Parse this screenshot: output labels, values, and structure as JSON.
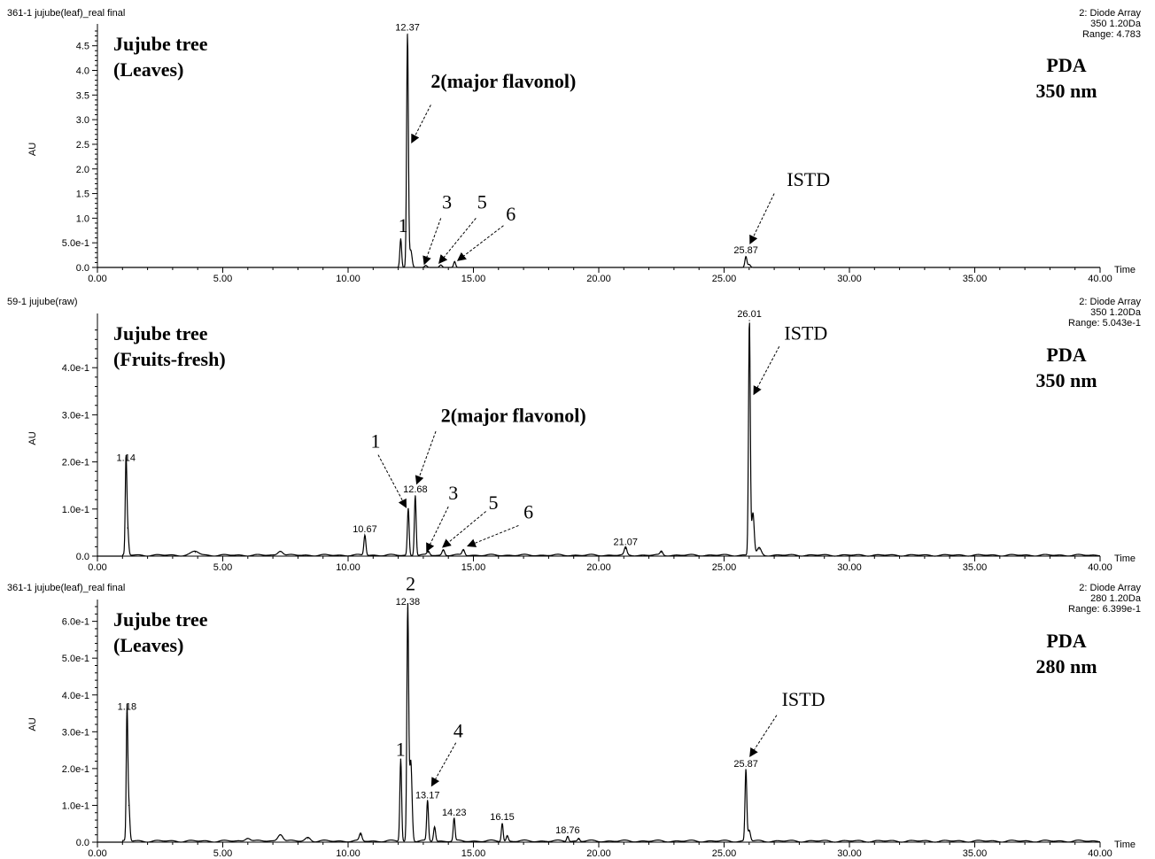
{
  "chart_data": [
    {
      "type": "line",
      "header_left": "361-1 jujube(leaf)_real final",
      "header_right": [
        "2: Diode Array",
        "350 1.20Da",
        "Range: 4.783"
      ],
      "title": [
        "Jujube tree",
        "(Leaves)"
      ],
      "detector": [
        "PDA",
        "350 nm"
      ],
      "ylabel": "AU",
      "xlabel": "Time",
      "xlim": [
        0,
        40
      ],
      "ylim": [
        0,
        4.8
      ],
      "xticks": [
        "0.00",
        "5.00",
        "10.00",
        "15.00",
        "20.00",
        "25.00",
        "30.00",
        "35.00",
        "40.00"
      ],
      "yticks": [
        {
          "value": 0,
          "label": "0.0"
        },
        {
          "value": 0.5,
          "label": "5.0e-1"
        },
        {
          "value": 1.0,
          "label": "1.0"
        },
        {
          "value": 1.5,
          "label": "1.5"
        },
        {
          "value": 2.0,
          "label": "2.0"
        },
        {
          "value": 2.5,
          "label": "2.5"
        },
        {
          "value": 3.0,
          "label": "3.0"
        },
        {
          "value": 3.5,
          "label": "3.5"
        },
        {
          "value": 4.0,
          "label": "4.0"
        },
        {
          "value": 4.5,
          "label": "4.5"
        }
      ],
      "peaks": [
        {
          "x": 12.1,
          "y": 0.58,
          "w": 0.035
        },
        {
          "x": 12.37,
          "y": 4.74,
          "w": 0.035
        },
        {
          "x": 12.5,
          "y": 0.35,
          "w": 0.05
        },
        {
          "x": 13.1,
          "y": 0.04,
          "w": 0.05
        },
        {
          "x": 13.7,
          "y": 0.05,
          "w": 0.05
        },
        {
          "x": 14.25,
          "y": 0.12,
          "w": 0.04
        },
        {
          "x": 25.87,
          "y": 0.22,
          "w": 0.04
        },
        {
          "x": 26.0,
          "y": 0.06,
          "w": 0.05
        }
      ],
      "peak_labels": [
        {
          "x": 12.37,
          "y": 4.74,
          "text": "12.37"
        },
        {
          "x": 25.87,
          "y": 0.22,
          "text": "25.87"
        }
      ],
      "annotations": [
        {
          "text": "1",
          "at": [
            12.05,
            0.56
          ],
          "label_at": [
            12.0,
            0.72
          ]
        },
        {
          "text": "2(major flavonol)",
          "arrow_from": [
            13.3,
            3.3
          ],
          "arrow_to": [
            12.55,
            2.55
          ],
          "label_at": [
            13.3,
            3.65
          ]
        },
        {
          "text": "3",
          "arrow_from": [
            13.7,
            1.0
          ],
          "arrow_to": [
            13.05,
            0.08
          ],
          "label_at": [
            13.75,
            1.2
          ]
        },
        {
          "text": "5",
          "arrow_from": [
            15.1,
            1.0
          ],
          "arrow_to": [
            13.65,
            0.1
          ],
          "label_at": [
            15.15,
            1.2
          ]
        },
        {
          "text": "6",
          "arrow_from": [
            16.2,
            0.85
          ],
          "arrow_to": [
            14.4,
            0.15
          ],
          "label_at": [
            16.3,
            0.95
          ]
        },
        {
          "text": "ISTD",
          "arrow_from": [
            27.0,
            1.5
          ],
          "arrow_to": [
            26.05,
            0.5
          ],
          "label_at": [
            27.5,
            1.65
          ]
        }
      ]
    },
    {
      "type": "line",
      "header_left": "59-1 jujube(raw)",
      "header_right": [
        "2: Diode Array",
        "350 1.20Da",
        "Range: 5.043e-1"
      ],
      "title": [
        "Jujube tree",
        "(Fruits-fresh)"
      ],
      "detector": [
        "PDA",
        "350 nm"
      ],
      "ylabel": "AU",
      "xlabel": "Time",
      "xlim": [
        0,
        40
      ],
      "ylim": [
        0,
        0.5
      ],
      "xticks": [
        "0.00",
        "5.00",
        "10.00",
        "15.00",
        "20.00",
        "25.00",
        "30.00",
        "35.00",
        "40.00"
      ],
      "yticks": [
        {
          "value": 0,
          "label": "0.0"
        },
        {
          "value": 0.1,
          "label": "1.0e-1"
        },
        {
          "value": 0.2,
          "label": "2.0e-1"
        },
        {
          "value": 0.3,
          "label": "3.0e-1"
        },
        {
          "value": 0.4,
          "label": "4.0e-1"
        }
      ],
      "baseline_noise": 0.004,
      "peaks": [
        {
          "x": 1.14,
          "y": 0.195,
          "w": 0.03
        },
        {
          "x": 1.2,
          "y": 0.06,
          "w": 0.04
        },
        {
          "x": 3.9,
          "y": 0.008,
          "w": 0.15
        },
        {
          "x": 7.3,
          "y": 0.01,
          "w": 0.1
        },
        {
          "x": 10.67,
          "y": 0.043,
          "w": 0.04
        },
        {
          "x": 12.4,
          "y": 0.1,
          "w": 0.035
        },
        {
          "x": 12.68,
          "y": 0.128,
          "w": 0.035
        },
        {
          "x": 13.2,
          "y": 0.008,
          "w": 0.05
        },
        {
          "x": 13.8,
          "y": 0.012,
          "w": 0.05
        },
        {
          "x": 14.6,
          "y": 0.012,
          "w": 0.05
        },
        {
          "x": 21.07,
          "y": 0.016,
          "w": 0.05
        },
        {
          "x": 22.5,
          "y": 0.008,
          "w": 0.05
        },
        {
          "x": 26.01,
          "y": 0.5,
          "w": 0.035
        },
        {
          "x": 26.15,
          "y": 0.09,
          "w": 0.05
        },
        {
          "x": 26.4,
          "y": 0.015,
          "w": 0.08
        }
      ],
      "peak_labels": [
        {
          "x": 1.14,
          "y": 0.195,
          "text": "1.14"
        },
        {
          "x": 10.67,
          "y": 0.043,
          "text": "10.67"
        },
        {
          "x": 12.68,
          "y": 0.128,
          "text": "12.68"
        },
        {
          "x": 21.07,
          "y": 0.016,
          "text": "21.07"
        },
        {
          "x": 26.01,
          "y": 0.5,
          "text": "26.01"
        }
      ],
      "annotations": [
        {
          "text": "1",
          "arrow_from": [
            11.2,
            0.215
          ],
          "arrow_to": [
            12.3,
            0.105
          ],
          "label_at": [
            10.9,
            0.23
          ]
        },
        {
          "text": "2(major flavonol)",
          "arrow_from": [
            13.5,
            0.265
          ],
          "arrow_to": [
            12.75,
            0.155
          ],
          "label_at": [
            13.7,
            0.285
          ]
        },
        {
          "text": "3",
          "arrow_from": [
            14.0,
            0.105
          ],
          "arrow_to": [
            13.15,
            0.012
          ],
          "label_at": [
            14.0,
            0.12
          ]
        },
        {
          "text": "5",
          "arrow_from": [
            15.5,
            0.095
          ],
          "arrow_to": [
            13.8,
            0.02
          ],
          "label_at": [
            15.6,
            0.1
          ]
        },
        {
          "text": "6",
          "arrow_from": [
            16.8,
            0.065
          ],
          "arrow_to": [
            14.8,
            0.022
          ],
          "label_at": [
            17.0,
            0.08
          ]
        },
        {
          "text": "ISTD",
          "arrow_from": [
            27.2,
            0.445
          ],
          "arrow_to": [
            26.2,
            0.345
          ],
          "label_at": [
            27.4,
            0.46
          ]
        }
      ]
    },
    {
      "type": "line",
      "header_left": "361-1 jujube(leaf)_real final",
      "header_right": [
        "2: Diode Array",
        "280 1.20Da",
        "Range: 6.399e-1"
      ],
      "title": [
        "Jujube tree",
        "(Leaves)"
      ],
      "detector": [
        "PDA",
        "280 nm"
      ],
      "ylabel": "AU",
      "xlabel": "Time",
      "xlim": [
        0,
        40
      ],
      "ylim": [
        0,
        0.64
      ],
      "xticks": [
        "0.00",
        "5.00",
        "10.00",
        "15.00",
        "20.00",
        "25.00",
        "30.00",
        "35.00",
        "40.00"
      ],
      "yticks": [
        {
          "value": 0,
          "label": "0.0"
        },
        {
          "value": 0.1,
          "label": "1.0e-1"
        },
        {
          "value": 0.2,
          "label": "2.0e-1"
        },
        {
          "value": 0.3,
          "label": "3.0e-1"
        },
        {
          "value": 0.4,
          "label": "4.0e-1"
        },
        {
          "value": 0.5,
          "label": "5.0e-1"
        },
        {
          "value": 0.6,
          "label": "6.0e-1"
        }
      ],
      "baseline_noise": 0.006,
      "peaks": [
        {
          "x": 1.18,
          "y": 0.35,
          "w": 0.03
        },
        {
          "x": 1.25,
          "y": 0.1,
          "w": 0.04
        },
        {
          "x": 6.0,
          "y": 0.01,
          "w": 0.1
        },
        {
          "x": 7.3,
          "y": 0.02,
          "w": 0.1
        },
        {
          "x": 8.4,
          "y": 0.01,
          "w": 0.1
        },
        {
          "x": 10.5,
          "y": 0.02,
          "w": 0.05
        },
        {
          "x": 12.1,
          "y": 0.225,
          "w": 0.035
        },
        {
          "x": 12.38,
          "y": 0.635,
          "w": 0.035
        },
        {
          "x": 12.5,
          "y": 0.22,
          "w": 0.05
        },
        {
          "x": 13.17,
          "y": 0.11,
          "w": 0.035
        },
        {
          "x": 13.45,
          "y": 0.04,
          "w": 0.04
        },
        {
          "x": 14.23,
          "y": 0.062,
          "w": 0.035
        },
        {
          "x": 16.15,
          "y": 0.05,
          "w": 0.035
        },
        {
          "x": 16.35,
          "y": 0.015,
          "w": 0.04
        },
        {
          "x": 18.76,
          "y": 0.015,
          "w": 0.04
        },
        {
          "x": 19.2,
          "y": 0.008,
          "w": 0.04
        },
        {
          "x": 25.87,
          "y": 0.195,
          "w": 0.035
        },
        {
          "x": 26.0,
          "y": 0.03,
          "w": 0.05
        }
      ],
      "peak_labels": [
        {
          "x": 1.18,
          "y": 0.35,
          "text": "1.18"
        },
        {
          "x": 12.38,
          "y": 0.635,
          "text": "12.38"
        },
        {
          "x": 13.17,
          "y": 0.11,
          "text": "13.17"
        },
        {
          "x": 14.23,
          "y": 0.062,
          "text": "14.23"
        },
        {
          "x": 16.15,
          "y": 0.05,
          "text": "16.15"
        },
        {
          "x": 18.76,
          "y": 0.015,
          "text": "18.76"
        },
        {
          "x": 25.87,
          "y": 0.195,
          "text": "25.87"
        }
      ],
      "annotations": [
        {
          "text": "1",
          "label_at": [
            11.9,
            0.235
          ]
        },
        {
          "text": "2",
          "label_at": [
            12.3,
            0.685
          ]
        },
        {
          "text": "4",
          "arrow_from": [
            14.3,
            0.27
          ],
          "arrow_to": [
            13.35,
            0.155
          ],
          "label_at": [
            14.2,
            0.285
          ]
        },
        {
          "text": "ISTD",
          "arrow_from": [
            27.1,
            0.345
          ],
          "arrow_to": [
            26.05,
            0.235
          ],
          "label_at": [
            27.3,
            0.37
          ]
        }
      ]
    }
  ]
}
